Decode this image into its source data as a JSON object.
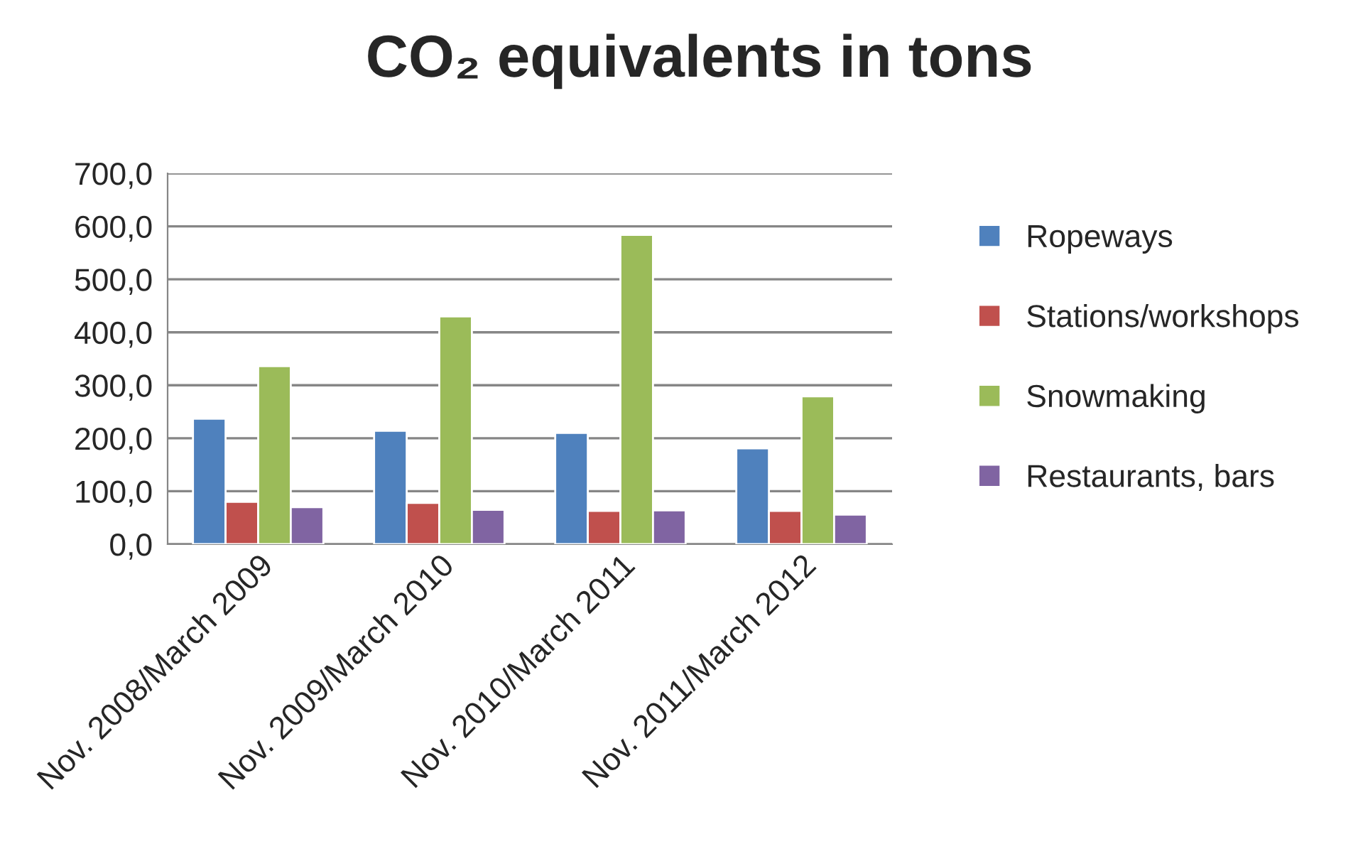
{
  "chart_data": {
    "type": "bar",
    "title": "CO₂ equivalents in tons",
    "categories": [
      "Nov. 2008/March 2009",
      "Nov. 2009/March 2010",
      "Nov. 2010/March 2011",
      "Nov. 2011/March 2012"
    ],
    "series": [
      {
        "name": "Ropeways",
        "color": "#4f81bd",
        "values": [
          237,
          214,
          210,
          181
        ]
      },
      {
        "name": "Stations/workshops",
        "color": "#c0504d",
        "values": [
          80,
          78,
          63,
          63
        ]
      },
      {
        "name": "Snowmaking",
        "color": "#9bbb59",
        "values": [
          336,
          430,
          584,
          279
        ]
      },
      {
        "name": "Restaurants, bars",
        "color": "#8064a2",
        "values": [
          70,
          65,
          64,
          56
        ]
      }
    ],
    "ylim": [
      0,
      700
    ],
    "yticks": [
      {
        "value": 0,
        "label": "0,0"
      },
      {
        "value": 100,
        "label": "100,0"
      },
      {
        "value": 200,
        "label": "200,0"
      },
      {
        "value": 300,
        "label": "300,0"
      },
      {
        "value": 400,
        "label": "400,0"
      },
      {
        "value": 500,
        "label": "500,0"
      },
      {
        "value": 600,
        "label": "600,0"
      },
      {
        "value": 700,
        "label": "700,0"
      }
    ],
    "grid": "y",
    "legend": "right"
  }
}
